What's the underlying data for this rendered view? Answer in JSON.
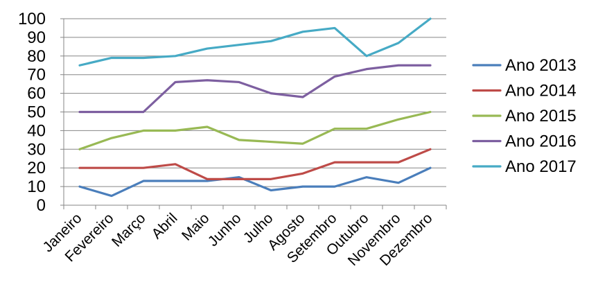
{
  "chart_data": {
    "type": "line",
    "title": "",
    "xlabel": "",
    "ylabel": "",
    "ylim": [
      0,
      100
    ],
    "yticks": [
      0,
      10,
      20,
      30,
      40,
      50,
      60,
      70,
      80,
      90,
      100
    ],
    "grid": true,
    "legend": "right",
    "categories": [
      "Janeiro",
      "Fevereiro",
      "Março",
      "Abril",
      "Maio",
      "Junho",
      "Julho",
      "Agosto",
      "Setembro",
      "Outubro",
      "Novembro",
      "Dezembro"
    ],
    "series": [
      {
        "name": "Ano 2013",
        "color": "#4a7ebb",
        "values": [
          10,
          5,
          13,
          13,
          13,
          15,
          8,
          10,
          10,
          15,
          12,
          20
        ]
      },
      {
        "name": "Ano 2014",
        "color": "#be4b48",
        "values": [
          20,
          20,
          20,
          22,
          14,
          14,
          14,
          17,
          23,
          23,
          23,
          30
        ]
      },
      {
        "name": "Ano 2015",
        "color": "#98b954",
        "values": [
          30,
          36,
          40,
          40,
          42,
          35,
          34,
          33,
          41,
          41,
          46,
          50
        ]
      },
      {
        "name": "Ano 2016",
        "color": "#7d5fa0",
        "values": [
          50,
          50,
          50,
          66,
          67,
          66,
          60,
          58,
          69,
          73,
          75,
          75
        ]
      },
      {
        "name": "Ano 2017",
        "color": "#46aac5",
        "values": [
          75,
          79,
          79,
          80,
          84,
          86,
          88,
          93,
          95,
          80,
          87,
          100
        ]
      }
    ]
  }
}
